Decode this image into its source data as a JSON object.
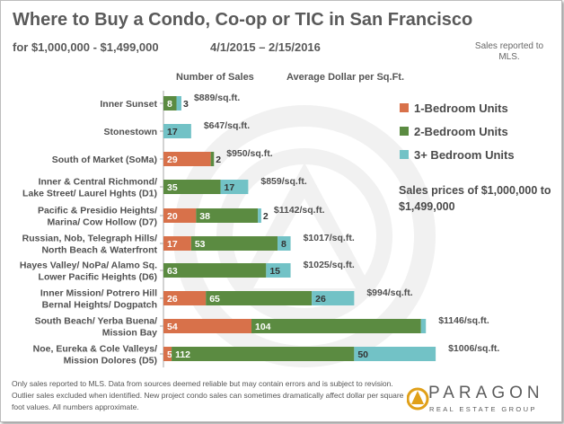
{
  "header": {
    "title": "Where to Buy a Condo, Co-op or TIC in San Francisco",
    "subtitle": "for $1,000,000 - $1,499,000",
    "period": "4/1/2015 – 2/15/2016",
    "mls_note": "Sales reported to MLS."
  },
  "columns": {
    "sales_header": "Number of Sales",
    "ppsf_header": "Average Dollar per Sq.Ft."
  },
  "annotation": "Sales prices of $1,000,000 to $1,499,000",
  "footnote": "Only sales reported to MLS. Data from sources deemed reliable but may contain errors and is subject to revision. Outlier sales excluded when identified. New project condo sales can sometimes dramatically affect dollar per square foot values. All numbers approximate.",
  "logo": {
    "name": "PARAGON",
    "tagline": "REAL ESTATE GROUP"
  },
  "colors": {
    "one_bedroom": "#d8714a",
    "two_bedroom": "#5b8b41",
    "three_plus": "#72c2c6",
    "text": "#505050",
    "axis": "#a6a6a6"
  },
  "chart_data": {
    "type": "bar",
    "orientation": "horizontal",
    "stacked": true,
    "title": "Where to Buy a Condo, Co-op or TIC in San Francisco",
    "subtitle": "for $1,000,000 - $1,499,000",
    "categories": [
      "Inner Sunset",
      "Stonestown",
      "South of Market (SoMa)",
      "Inner & Central Richmond/ Lake Street/ Laurel Hghts (D1)",
      "Pacific & Presidio Heights/ Marina/ Cow Hollow (D7)",
      "Russian, Nob, Telegraph Hills/ North Beach & Waterfront",
      "Hayes Valley/ NoPa/ Alamo Sq. Lower Pacific Heights (D6)",
      "Inner Mission/ Potrero Hill Bernal Heights/ Dogpatch",
      "South Beach/ Yerba Buena/ Mission Bay",
      "Noe, Eureka & Cole Valleys/ Mission Dolores (D5)"
    ],
    "category_lines": [
      [
        "Inner Sunset"
      ],
      [
        "Stonestown"
      ],
      [
        "South of Market (SoMa)"
      ],
      [
        "Inner & Central Richmond/",
        "Lake Street/ Laurel Hghts (D1)"
      ],
      [
        "Pacific & Presidio Heights/",
        "Marina/ Cow Hollow (D7)"
      ],
      [
        "Russian, Nob, Telegraph Hills/",
        "North Beach & Waterfront"
      ],
      [
        "Hayes Valley/ NoPa/ Alamo Sq.",
        "Lower Pacific Heights (D6)"
      ],
      [
        "Inner Mission/ Potrero Hill",
        "Bernal Heights/ Dogpatch"
      ],
      [
        "South Beach/ Yerba Buena/",
        "Mission Bay"
      ],
      [
        "Noe, Eureka & Cole Valleys/",
        "Mission Dolores (D5)"
      ]
    ],
    "series": [
      {
        "name": "1-Bedroom Units",
        "color": "#d8714a",
        "values": [
          0,
          0,
          29,
          0,
          20,
          17,
          0,
          26,
          54,
          5
        ]
      },
      {
        "name": "2-Bedroom Units",
        "color": "#5b8b41",
        "values": [
          8,
          0,
          2,
          35,
          38,
          53,
          63,
          65,
          104,
          112
        ]
      },
      {
        "name": "3+ Bedroom Units",
        "color": "#72c2c6",
        "values": [
          3,
          17,
          0,
          17,
          2,
          8,
          15,
          26,
          3,
          50
        ]
      }
    ],
    "data_labels": [
      [
        "",
        "8",
        "3"
      ],
      [
        "",
        "",
        "17"
      ],
      [
        "29",
        "2",
        ""
      ],
      [
        "",
        "35",
        "17"
      ],
      [
        "20",
        "38",
        "2"
      ],
      [
        "17",
        "53",
        "8"
      ],
      [
        "",
        "63",
        "15"
      ],
      [
        "26",
        "65",
        "26"
      ],
      [
        "54",
        "104",
        ""
      ],
      [
        "5",
        "112",
        "50"
      ]
    ],
    "ppsf_labels": [
      "$889/sq.ft.",
      "$647/sq.ft.",
      "$950/sq.ft.",
      "$859/sq.ft.",
      "$1142/sq.ft.",
      "$1017/sq.ft.",
      "$1025/sq.ft.",
      "$994/sq.ft.",
      "$1146/sq.ft.",
      "$1006/sq.ft."
    ],
    "legend": [
      "1-Bedroom Units",
      "2-Bedroom Units",
      "3+ Bedroom Units"
    ],
    "legend_position": "right",
    "xlabel": "Number of Sales",
    "grid": false
  }
}
